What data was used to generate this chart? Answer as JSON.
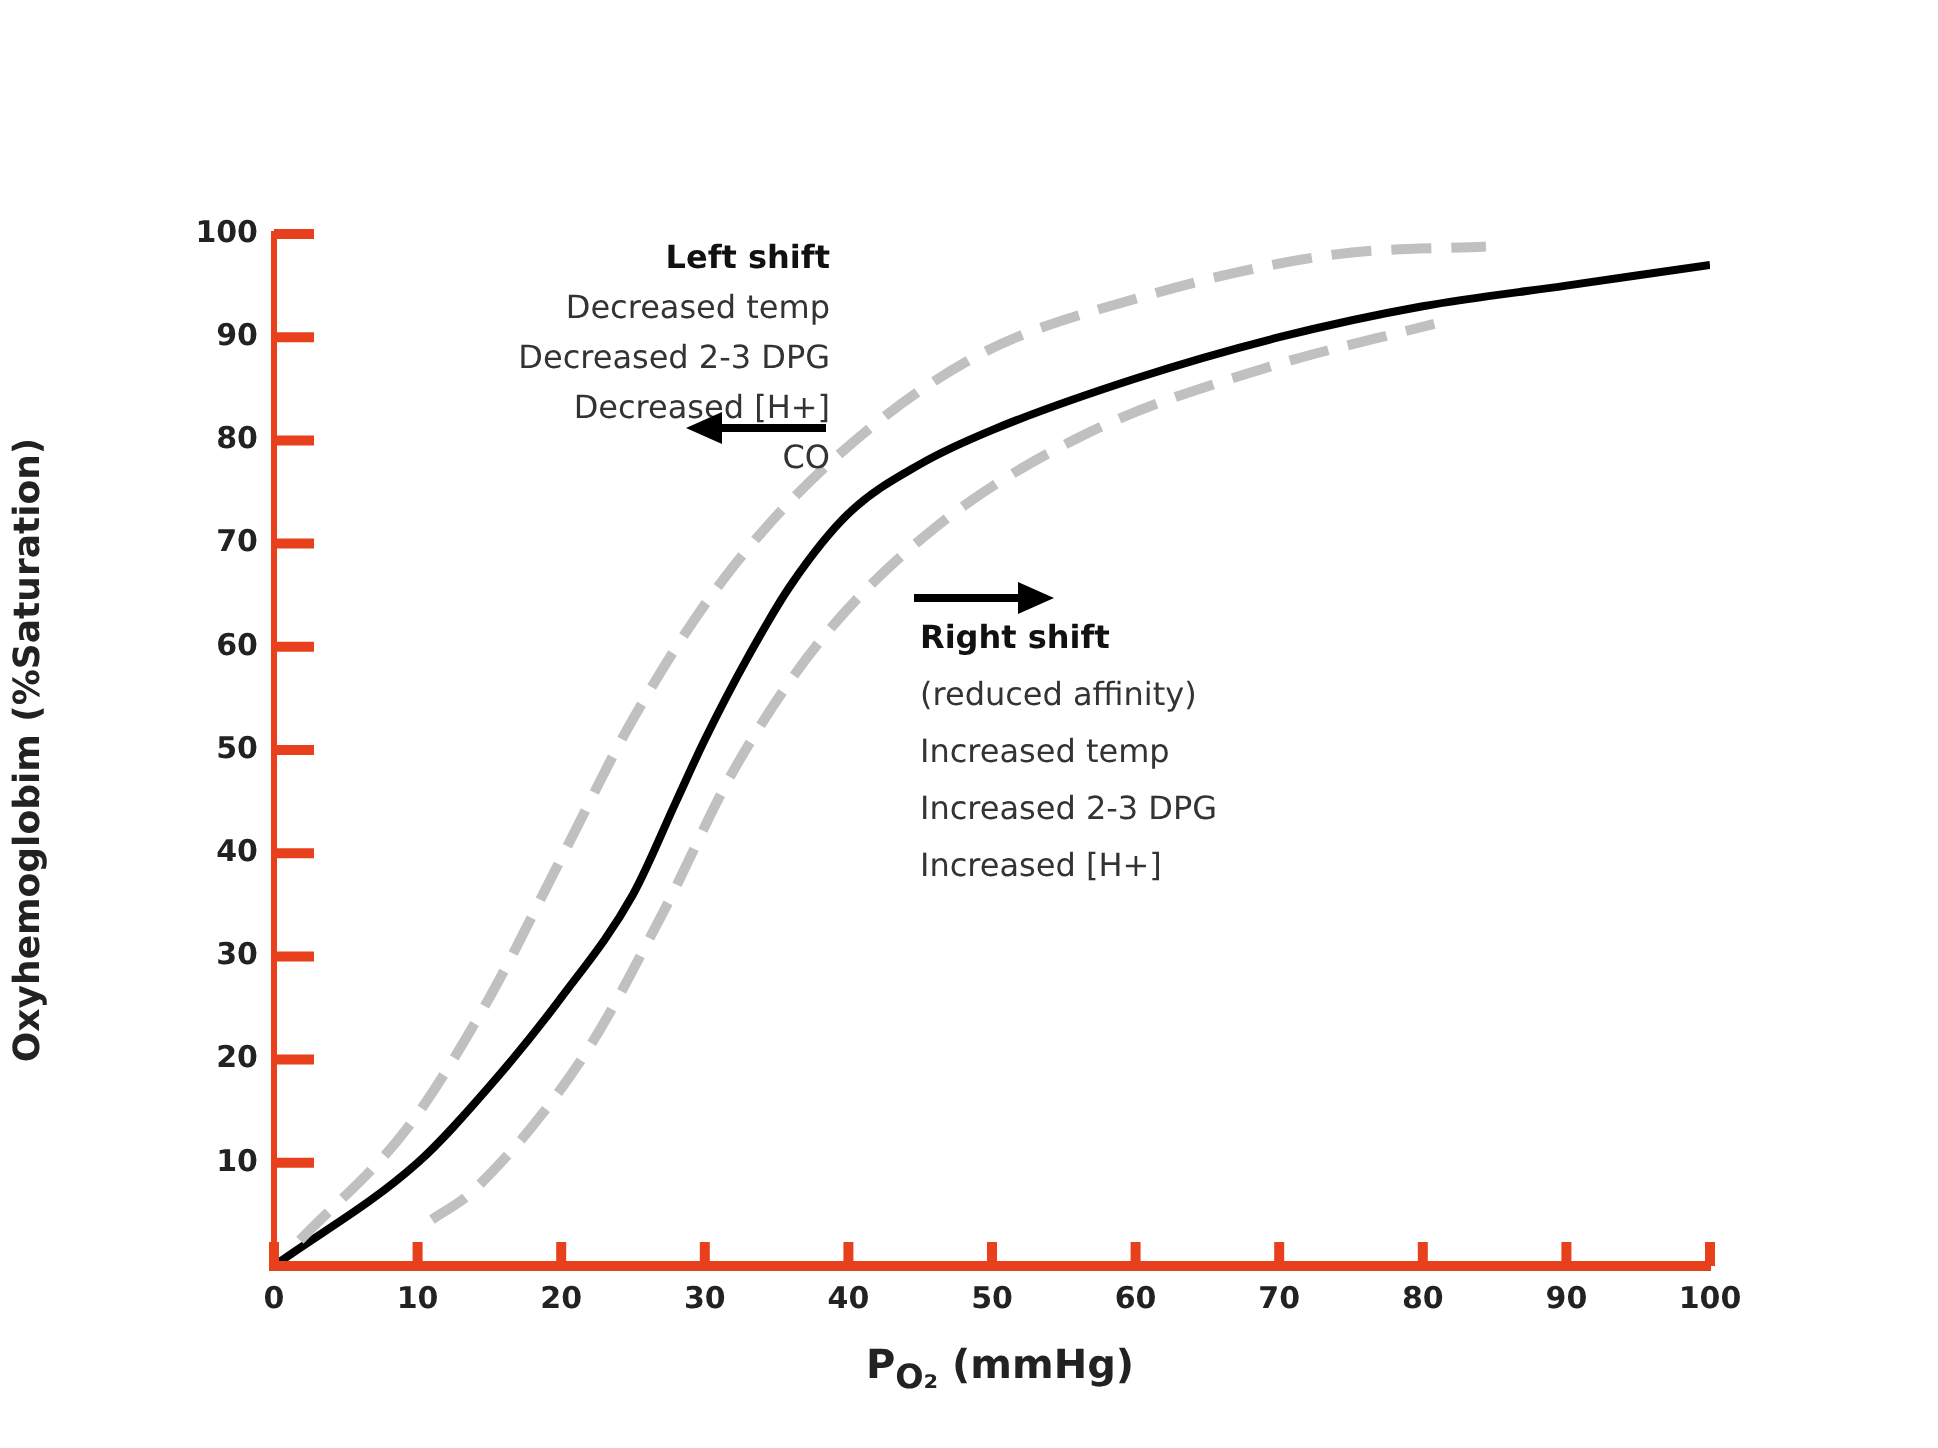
{
  "chart_data": {
    "type": "line",
    "xlabel": "P$_{O₂}$ (mmHg)",
    "ylabel": "Oxyhemoglobim (%Saturation)",
    "xlim": [
      0,
      100
    ],
    "ylim": [
      0,
      100
    ],
    "xticks": [
      0,
      10,
      20,
      30,
      40,
      50,
      60,
      70,
      80,
      90,
      100
    ],
    "yticks": [
      {
        "value": 0,
        "label": null
      },
      10,
      20,
      30,
      40,
      50,
      60,
      70,
      80,
      90,
      100
    ],
    "grid": false,
    "legend": false,
    "marker": "none",
    "annotations": [
      "Left shift\nDecreased temp\nDecreased 2-3 DPG\nDecreased [H+]\nCO",
      "Right shift\n(reduced affinity)\nIncreased temp\nIncreased 2-3 DPG\nIncreased [H+]"
    ],
    "series": [
      {
        "color": "#000000",
        "line_style": "solid",
        "x": [
          0,
          10,
          15,
          20,
          25,
          28,
          30,
          33,
          36,
          40,
          45,
          50,
          60,
          70,
          80,
          90,
          100
        ],
        "values": [
          0,
          10,
          17.4,
          26,
          36,
          45,
          51,
          59,
          66,
          72.9,
          77.7,
          81,
          86,
          90,
          93,
          95,
          97
        ]
      },
      {
        "color": "#c0c0c0",
        "line_style": "dashed",
        "x": [
          1.8,
          9.3,
          15,
          20,
          25,
          31,
          38.6,
          48.7,
          60.7,
          73.8,
          84.4
        ],
        "values": [
          2.5,
          13.4,
          26,
          39.5,
          53,
          66,
          77.7,
          88,
          94,
          98,
          98.8
        ]
      },
      {
        "color": "#c0c0c0",
        "line_style": "dashed",
        "x": [
          11,
          13.8,
          21.4,
          27,
          32,
          38,
          46,
          56.5,
          69,
          80.8
        ],
        "values": [
          4.5,
          7.2,
          20,
          34,
          48,
          60.5,
          71.5,
          80.6,
          87,
          91.3
        ]
      }
    ]
  }
}
